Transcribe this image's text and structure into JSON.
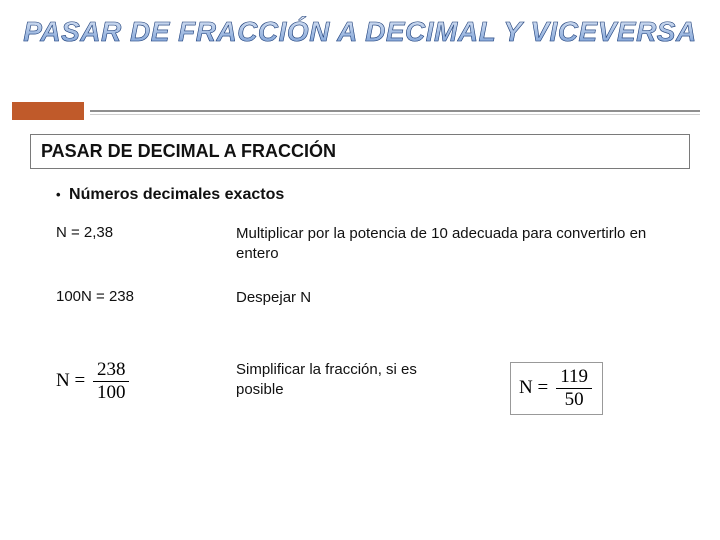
{
  "title": "PASAR DE FRACCIÓN A DECIMAL Y VICEVERSA",
  "subtitle": "PASAR DE DECIMAL A FRACCIÓN",
  "bullet": "Números decimales exactos",
  "rows": {
    "r1": {
      "left": "N = 2,38",
      "right": "Multiplicar por la potencia de 10 adecuada para convertirlo en entero"
    },
    "r2": {
      "left": "100N = 238",
      "right": "Despejar N"
    },
    "r3": {
      "right": "Simplificar la fracción, si es posible"
    }
  },
  "fracLeft": {
    "lhs": "N =",
    "num": "238",
    "den": "100"
  },
  "fracRight": {
    "lhs": "N =",
    "num": "119",
    "den": "50"
  },
  "colors": {
    "accent": "#c05a2a",
    "titleStroke": "#254a8a"
  }
}
